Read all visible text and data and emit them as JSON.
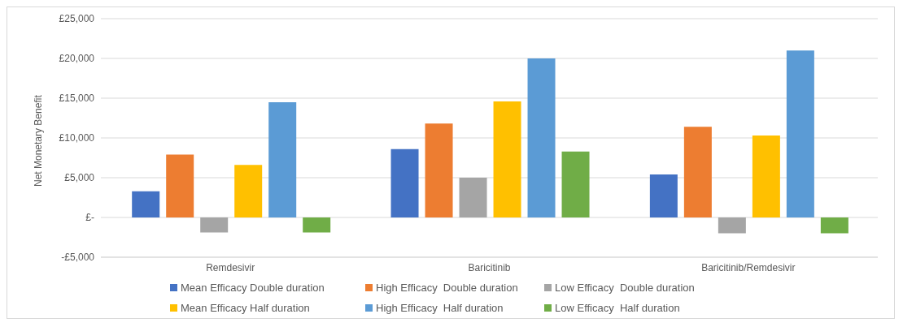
{
  "chart_data": {
    "type": "bar",
    "ylabel": "Net Monetary Benefit",
    "categories": [
      "Remdesivir",
      "Baricitinib",
      "Baricitinib/Remdesivir"
    ],
    "series": [
      {
        "name": "Mean Efficacy Double duration",
        "color": "#4472c4",
        "values": [
          3300,
          8600,
          5400
        ]
      },
      {
        "name": "High Efficacy  Double duration",
        "color": "#ed7d31",
        "values": [
          7900,
          11800,
          11400
        ]
      },
      {
        "name": "Low Efficacy  Double duration",
        "color": "#a5a5a5",
        "values": [
          -1900,
          5000,
          -2000
        ]
      },
      {
        "name": "Mean Efficacy Half duration",
        "color": "#ffc000",
        "values": [
          6600,
          14600,
          10300
        ]
      },
      {
        "name": "High Efficacy  Half duration",
        "color": "#5b9bd5",
        "values": [
          14500,
          20000,
          21000
        ]
      },
      {
        "name": "Low Efficacy  Half duration",
        "color": "#70ad47",
        "values": [
          -1900,
          8300,
          -2000
        ]
      }
    ],
    "ylim": [
      -5000,
      25000
    ],
    "yticks": [
      {
        "value": -5000,
        "label": "-£5,000"
      },
      {
        "value": 0,
        "label": "£-"
      },
      {
        "value": 5000,
        "label": "£5,000"
      },
      {
        "value": 10000,
        "label": "£10,000"
      },
      {
        "value": 15000,
        "label": "£15,000"
      },
      {
        "value": 20000,
        "label": "£20,000"
      },
      {
        "value": 25000,
        "label": "£25,000"
      }
    ],
    "grid": "y",
    "legend": "bottom"
  }
}
